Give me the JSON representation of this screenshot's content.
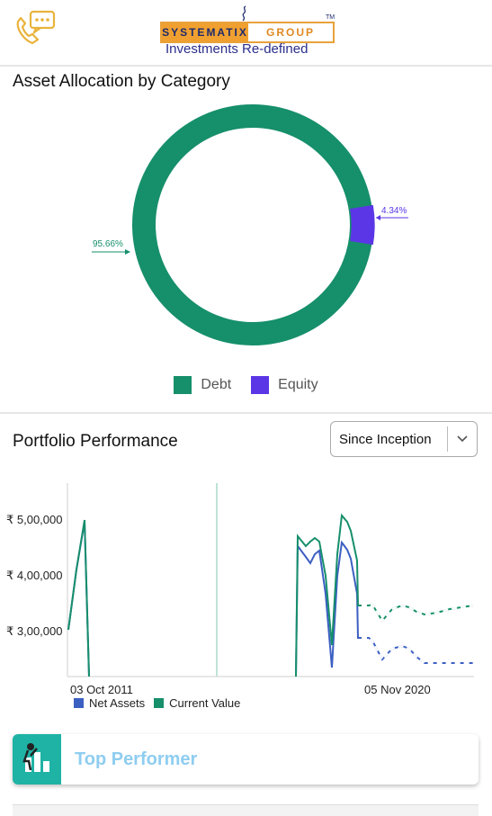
{
  "header": {
    "logo_left": "SYSTEMATIX",
    "logo_right": "GROUP",
    "logo_tm": "TM",
    "tagline": "Investments Re-defined",
    "call_icon": "phone-chat-icon"
  },
  "allocation": {
    "title": "Asset Allocation by Category",
    "debt_label": "95.66%",
    "equity_label": "4.34%",
    "legend": [
      {
        "label": "Debt",
        "color": "#168f6b"
      },
      {
        "label": "Equity",
        "color": "#5b36e6"
      }
    ]
  },
  "performance": {
    "title": "Portfolio Performance",
    "period": "Since Inception",
    "x_start_label": "03 Oct 2011",
    "x_end_label": "05 Nov 2020",
    "legend_net": "Net Assets",
    "legend_current": "Current Value"
  },
  "chart_data": [
    {
      "type": "pie",
      "categories": [
        "Debt",
        "Equity"
      ],
      "values": [
        95.66,
        4.34
      ],
      "colors": [
        "#168f6b",
        "#5b36e6"
      ],
      "legend": "bottom"
    },
    {
      "type": "line",
      "ylabels": [
        "₹ 5,00,000",
        "₹ 4,00,000",
        "₹ 3,00,000"
      ],
      "series": [
        {
          "name": "Current Value",
          "color": "#168f6b"
        },
        {
          "name": "Net Assets",
          "color": "#3c5fc2"
        }
      ]
    }
  ],
  "cards": [
    {
      "title": "Top Performer"
    }
  ]
}
